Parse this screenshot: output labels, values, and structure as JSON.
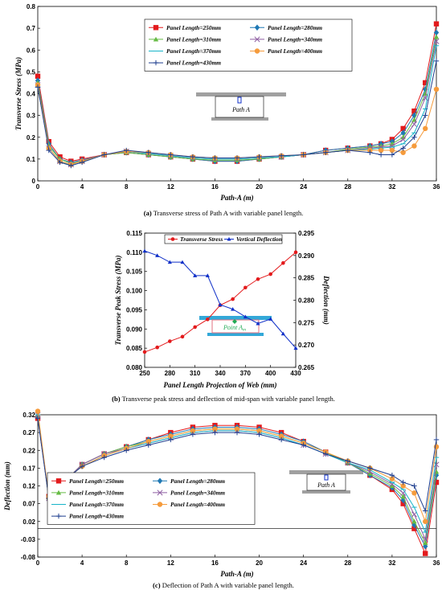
{
  "colors": {
    "250": "#e31a1c",
    "280": "#1f78b4",
    "310": "#66bb44",
    "340": "#8e5ea2",
    "370": "#17b4c8",
    "400": "#f59b3c",
    "430": "#1f3f8f",
    "stress": "#e31a1c",
    "deflection": "#1030c8",
    "beam": "#a0a0a0",
    "deck": "#33a8d8",
    "point": "#22aa55"
  },
  "chart_data": [
    {
      "type": "line",
      "caption_letter": "(a)",
      "caption_text": " Transverse stress of Path A with variable panel length.",
      "xlabel": "Path-A (m)",
      "ylabel": "Transverse Stress (MPa)",
      "xlim": [
        0,
        36
      ],
      "ylim": [
        0,
        0.8
      ],
      "xticks": [
        "0",
        "4",
        "8",
        "12",
        "16",
        "20",
        "24",
        "28",
        "32",
        "36"
      ],
      "yticks": [
        "0",
        "0.1",
        "0.2",
        "0.3",
        "0.4",
        "0.5",
        "0.6",
        "0.7",
        "0.8"
      ],
      "legend": "top-center",
      "inset_label": "Path A",
      "x": [
        0,
        1,
        2,
        3,
        4,
        6,
        8,
        10,
        12,
        14,
        16,
        18,
        20,
        22,
        24,
        26,
        28,
        30,
        31,
        32,
        33,
        34,
        35,
        36
      ],
      "series": [
        {
          "name": "Panel Length=250mm",
          "key": "250",
          "values": [
            0.48,
            0.18,
            0.11,
            0.09,
            0.1,
            0.12,
            0.13,
            0.12,
            0.11,
            0.1,
            0.09,
            0.09,
            0.1,
            0.11,
            0.12,
            0.14,
            0.15,
            0.16,
            0.17,
            0.19,
            0.24,
            0.32,
            0.45,
            0.72
          ]
        },
        {
          "name": "Panel Length=280mm",
          "key": "280",
          "values": [
            0.46,
            0.17,
            0.1,
            0.085,
            0.095,
            0.12,
            0.13,
            0.12,
            0.11,
            0.1,
            0.09,
            0.09,
            0.1,
            0.11,
            0.12,
            0.14,
            0.15,
            0.16,
            0.17,
            0.18,
            0.22,
            0.3,
            0.42,
            0.68
          ]
        },
        {
          "name": "Panel Length=310mm",
          "key": "310",
          "values": [
            0.45,
            0.16,
            0.1,
            0.08,
            0.09,
            0.12,
            0.13,
            0.12,
            0.11,
            0.1,
            0.095,
            0.095,
            0.1,
            0.11,
            0.12,
            0.13,
            0.145,
            0.155,
            0.16,
            0.17,
            0.2,
            0.28,
            0.4,
            0.66
          ]
        },
        {
          "name": "Panel Length=340mm",
          "key": "340",
          "values": [
            0.44,
            0.15,
            0.09,
            0.075,
            0.09,
            0.12,
            0.135,
            0.125,
            0.115,
            0.105,
            0.1,
            0.1,
            0.105,
            0.11,
            0.12,
            0.13,
            0.14,
            0.15,
            0.155,
            0.16,
            0.19,
            0.26,
            0.38,
            0.64
          ]
        },
        {
          "name": "Panel Length=370mm",
          "key": "370",
          "values": [
            0.43,
            0.15,
            0.09,
            0.07,
            0.085,
            0.12,
            0.135,
            0.125,
            0.115,
            0.105,
            0.1,
            0.1,
            0.105,
            0.11,
            0.12,
            0.13,
            0.14,
            0.145,
            0.15,
            0.155,
            0.17,
            0.22,
            0.33,
            0.62
          ]
        },
        {
          "name": "Panel Length=400mm",
          "key": "400",
          "values": [
            0.44,
            0.15,
            0.09,
            0.075,
            0.09,
            0.12,
            0.135,
            0.13,
            0.12,
            0.11,
            0.105,
            0.105,
            0.11,
            0.115,
            0.12,
            0.13,
            0.14,
            0.14,
            0.14,
            0.14,
            0.13,
            0.16,
            0.24,
            0.42
          ]
        },
        {
          "name": "Panel Length=430mm",
          "key": "430",
          "values": [
            0.43,
            0.14,
            0.085,
            0.07,
            0.085,
            0.12,
            0.14,
            0.13,
            0.12,
            0.11,
            0.105,
            0.105,
            0.11,
            0.115,
            0.12,
            0.13,
            0.14,
            0.13,
            0.12,
            0.12,
            0.15,
            0.2,
            0.3,
            0.55
          ]
        }
      ]
    },
    {
      "type": "line",
      "caption_letter": "(b)",
      "caption_text": " Transverse peak stress and deflection of mid-span with variable panel length.",
      "xlabel": "Panel Length Projection of Web (mm)",
      "ylabel": "Transverse Peak Stress (MPa)",
      "y2label": "Deflection (mm)",
      "xlim": [
        250,
        430
      ],
      "ylim": [
        0.08,
        0.115
      ],
      "y2lim": [
        0.265,
        0.295
      ],
      "xticks": [
        "250",
        "280",
        "310",
        "340",
        "370",
        "400",
        "430"
      ],
      "yticks": [
        "0.080",
        "0.085",
        "0.090",
        "0.095",
        "0.100",
        "0.105",
        "0.110",
        "0.115"
      ],
      "y2ticks": [
        "0.265",
        "0.270",
        "0.275",
        "0.280",
        "0.285",
        "0.290",
        "0.295"
      ],
      "legend": "top",
      "inset_label": "Point A",
      "inset_sub": "m",
      "x": [
        250,
        265,
        280,
        295,
        310,
        325,
        340,
        355,
        370,
        385,
        400,
        415,
        430
      ],
      "series": [
        {
          "name": "Transverse Stress",
          "key": "stress",
          "axis": "left",
          "values": [
            0.084,
            0.0852,
            0.0868,
            0.088,
            0.0905,
            0.0925,
            0.0962,
            0.0978,
            0.1008,
            0.103,
            0.1043,
            0.1072,
            0.11
          ]
        },
        {
          "name": "Vertical Deflection",
          "key": "deflection",
          "axis": "right",
          "values": [
            0.291,
            0.29,
            0.2885,
            0.2885,
            0.2855,
            0.2855,
            0.279,
            0.278,
            0.2763,
            0.2748,
            0.2758,
            0.2725,
            0.2693
          ]
        }
      ]
    },
    {
      "type": "line",
      "caption_letter": "(c)",
      "caption_text": " Deflection of Path A with variable panel length.",
      "xlabel": "Path-A (m)",
      "ylabel": "Deflection (mm)",
      "xlim": [
        0,
        36
      ],
      "ylim": [
        -0.08,
        0.32
      ],
      "xticks": [
        "0",
        "4",
        "8",
        "12",
        "16",
        "20",
        "24",
        "28",
        "32",
        "36"
      ],
      "yticks": [
        "-0.08",
        "-0.03",
        "0.02",
        "0.07",
        "0.12",
        "0.17",
        "0.22",
        "0.27",
        "0.32"
      ],
      "legend": "bottom-left",
      "inset_label": "Path A",
      "x": [
        0,
        1,
        2,
        3,
        4,
        6,
        8,
        10,
        12,
        14,
        16,
        18,
        20,
        22,
        24,
        26,
        28,
        30,
        32,
        33,
        34,
        35,
        36
      ],
      "series": [
        {
          "name": "Panel Length=250mm",
          "key": "250",
          "values": [
            0.31,
            0.09,
            0.1,
            0.15,
            0.18,
            0.21,
            0.23,
            0.25,
            0.27,
            0.285,
            0.29,
            0.29,
            0.285,
            0.27,
            0.245,
            0.215,
            0.185,
            0.15,
            0.11,
            0.07,
            0.0,
            -0.07,
            0.13
          ]
        },
        {
          "name": "Panel Length=280mm",
          "key": "280",
          "values": [
            0.315,
            0.085,
            0.1,
            0.15,
            0.18,
            0.21,
            0.23,
            0.25,
            0.265,
            0.28,
            0.285,
            0.285,
            0.28,
            0.265,
            0.245,
            0.215,
            0.185,
            0.15,
            0.115,
            0.08,
            0.01,
            -0.05,
            0.15
          ]
        },
        {
          "name": "Panel Length=310mm",
          "key": "310",
          "values": [
            0.32,
            0.085,
            0.095,
            0.15,
            0.18,
            0.21,
            0.23,
            0.245,
            0.26,
            0.275,
            0.28,
            0.28,
            0.275,
            0.26,
            0.24,
            0.215,
            0.185,
            0.155,
            0.12,
            0.09,
            0.02,
            -0.04,
            0.16
          ]
        },
        {
          "name": "Panel Length=340mm",
          "key": "340",
          "values": [
            0.32,
            0.085,
            0.095,
            0.15,
            0.18,
            0.21,
            0.225,
            0.24,
            0.255,
            0.27,
            0.275,
            0.275,
            0.27,
            0.255,
            0.235,
            0.21,
            0.185,
            0.16,
            0.125,
            0.1,
            0.04,
            -0.03,
            0.18
          ]
        },
        {
          "name": "Panel Length=370mm",
          "key": "370",
          "values": [
            0.32,
            0.09,
            0.1,
            0.15,
            0.175,
            0.205,
            0.225,
            0.24,
            0.255,
            0.27,
            0.275,
            0.275,
            0.27,
            0.255,
            0.235,
            0.21,
            0.185,
            0.165,
            0.13,
            0.11,
            0.06,
            -0.01,
            0.2
          ]
        },
        {
          "name": "Panel Length=400mm",
          "key": "400",
          "values": [
            0.33,
            0.09,
            0.1,
            0.15,
            0.175,
            0.205,
            0.225,
            0.245,
            0.26,
            0.275,
            0.28,
            0.28,
            0.275,
            0.26,
            0.24,
            0.215,
            0.19,
            0.17,
            0.14,
            0.12,
            0.1,
            0.02,
            0.23
          ]
        },
        {
          "name": "Panel Length=430mm",
          "key": "430",
          "values": [
            0.31,
            0.085,
            0.095,
            0.15,
            0.175,
            0.2,
            0.22,
            0.235,
            0.25,
            0.265,
            0.27,
            0.27,
            0.265,
            0.25,
            0.235,
            0.21,
            0.19,
            0.17,
            0.15,
            0.13,
            0.12,
            0.05,
            0.25
          ]
        }
      ]
    }
  ]
}
